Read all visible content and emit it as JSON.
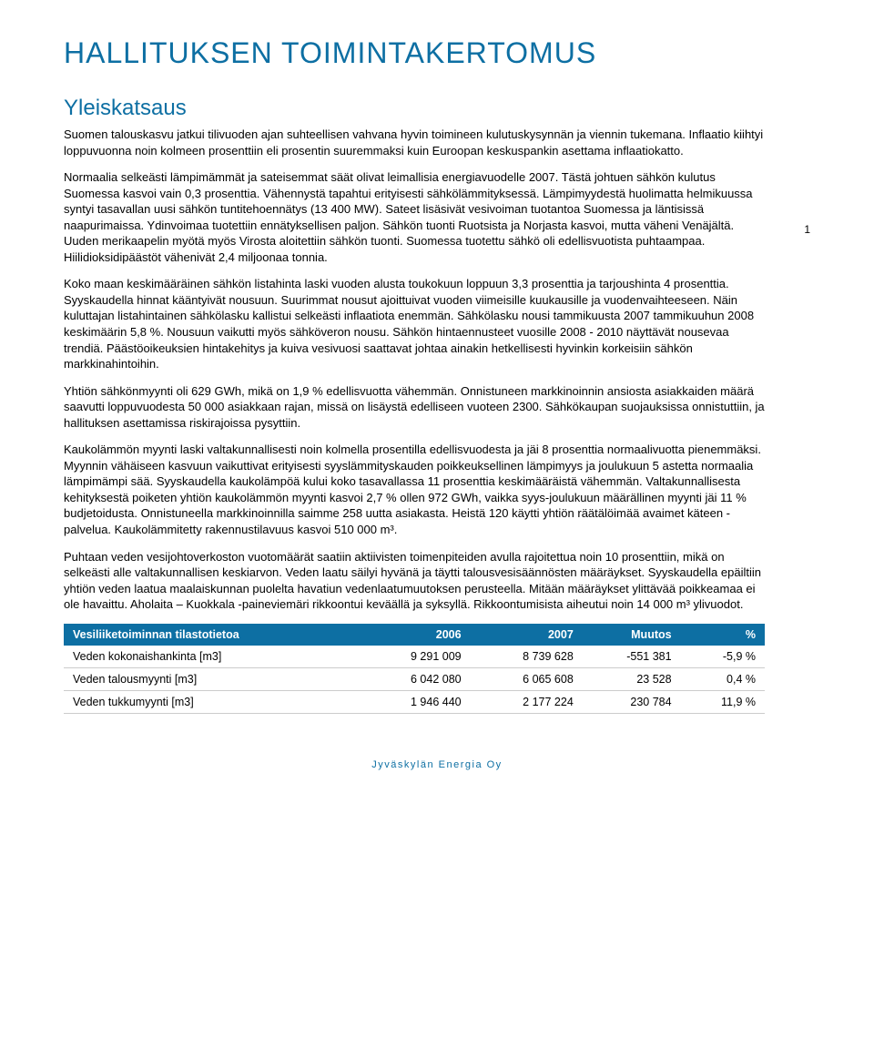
{
  "colors": {
    "heading": "#0d6fa3",
    "body_text": "#000000",
    "table_header_bg": "#0d6fa3",
    "table_header_text": "#ffffff",
    "row_border": "#cccccc",
    "footer_text": "#0d6fa3"
  },
  "typography": {
    "main_title_size": 32,
    "section_title_size": 24,
    "body_size": 13,
    "table_size": 12.5,
    "footer_size": 11
  },
  "page_number": "1",
  "main_title": "HALLITUKSEN TOIMINTAKERTOMUS",
  "section_title": "Yleiskatsaus",
  "intro": "Suomen talouskasvu jatkui tilivuoden ajan suhteellisen vahvana hyvin toimineen kulutuskysynnän ja viennin tukemana. Inflaatio kiihtyi loppuvuonna noin kolmeen prosenttiin eli prosentin suuremmaksi kuin Euroopan keskuspankin asettama inflaatiokatto.",
  "paragraphs": [
    "Normaalia selkeästi lämpimämmät ja sateisemmat säät olivat leimallisia energiavuodelle 2007. Tästä johtuen sähkön kulutus Suomessa kasvoi vain 0,3 prosenttia. Vähennystä tapahtui erityisesti sähkölämmityksessä. Lämpimyydestä huolimatta helmikuussa syntyi tasavallan uusi sähkön tuntitehoennätys (13 400 MW). Sateet lisäsivät vesivoiman tuotantoa Suomessa ja läntisissä naapurimaissa. Ydinvoimaa tuotettiin ennätyksellisen paljon. Sähkön tuonti Ruotsista ja Norjasta kasvoi, mutta väheni Venäjältä. Uuden merikaapelin myötä myös Virosta aloitettiin sähkön tuonti. Suomessa tuotettu sähkö oli edellisvuotista puhtaampaa. Hiilidioksidipäästöt vähenivät 2,4 miljoonaa tonnia.",
    "Koko maan keskimääräinen sähkön listahinta laski vuoden alusta toukokuun loppuun 3,3 prosenttia ja tarjoushinta 4 prosenttia. Syyskaudella hinnat kääntyivät nousuun. Suurimmat nousut ajoittuivat vuoden viimeisille kuukausille ja vuodenvaihteeseen. Näin kuluttajan listahintainen sähkölasku kallistui selkeästi inflaatiota enemmän. Sähkölasku nousi tammikuusta 2007 tammikuuhun 2008 keskimäärin 5,8 %. Nousuun vaikutti myös sähköveron nousu. Sähkön hintaennusteet vuosille 2008 - 2010 näyttävät nousevaa trendiä. Päästöoikeuksien hintakehitys ja kuiva vesivuosi saattavat johtaa ainakin hetkellisesti hyvinkin korkeisiin sähkön markkinahintoihin.",
    "Yhtiön sähkönmyynti oli 629 GWh, mikä on 1,9 % edellisvuotta vähemmän. Onnistuneen markkinoinnin ansiosta asiakkaiden määrä saavutti loppuvuodesta 50 000 asiakkaan rajan, missä on lisäystä edelliseen vuoteen 2300. Sähkökaupan suojauksissa onnistuttiin, ja hallituksen asettamissa riskirajoissa pysyttiin.",
    "Kaukolämmön myynti laski valtakunnallisesti noin kolmella prosentilla edellisvuodesta ja jäi 8 prosenttia normaalivuotta pienemmäksi. Myynnin vähäiseen kasvuun vaikuttivat erityisesti syyslämmityskauden poikkeuksellinen lämpimyys ja joulukuun 5 astetta normaalia lämpimämpi sää. Syyskaudella kaukolämpöä kului koko tasavallassa 11 prosenttia keskimääräistä vähemmän. Valtakunnallisesta kehityksestä poiketen yhtiön kaukolämmön myynti kasvoi 2,7 % ollen 972 GWh, vaikka syys-joulukuun määrällinen myynti jäi 11 % budjetoidusta. Onnistuneella markkinoinnilla saimme 258 uutta asiakasta. Heistä 120 käytti yhtiön räätälöimää avaimet käteen -palvelua. Kaukolämmitetty rakennustilavuus kasvoi 510 000 m³.",
    "Puhtaan veden vesijohtoverkoston vuotomäärät saatiin aktiivisten toimenpiteiden avulla rajoitettua noin 10 prosenttiin, mikä on selkeästi alle valtakunnallisen keskiarvon. Veden laatu säilyi hyvänä ja täytti talousvesisäännösten määräykset. Syyskaudella epäiltiin yhtiön veden laatua maalaiskunnan puolelta havatiun vedenlaatumuutoksen perusteella. Mitään määräykset ylittävää poikkeamaa ei ole havaittu. Aholaita – Kuokkala -paineviemäri rikkoontui keväällä ja syksyllä. Rikkoontumisista aiheutui noin 14 000 m³ ylivuodot."
  ],
  "table": {
    "header": {
      "label": "Vesiliiketoiminnan tilastotietoa",
      "col1": "2006",
      "col2": "2007",
      "col3": "Muutos",
      "col4": "%"
    },
    "rows": [
      {
        "label": "Veden kokonaishankinta [m3]",
        "c1": "9 291 009",
        "c2": "8 739 628",
        "c3": "-551 381",
        "c4": "-5,9 %"
      },
      {
        "label": "Veden talousmyynti [m3]",
        "c1": "6 042 080",
        "c2": "6 065 608",
        "c3": "23 528",
        "c4": "0,4 %"
      },
      {
        "label": "Veden tukkumyynti [m3]",
        "c1": "1 946 440",
        "c2": "2 177 224",
        "c3": "230 784",
        "c4": "11,9 %"
      }
    ],
    "col_widths": [
      "42%",
      "16%",
      "16%",
      "14%",
      "12%"
    ]
  },
  "footer": "Jyväskylän Energia Oy"
}
